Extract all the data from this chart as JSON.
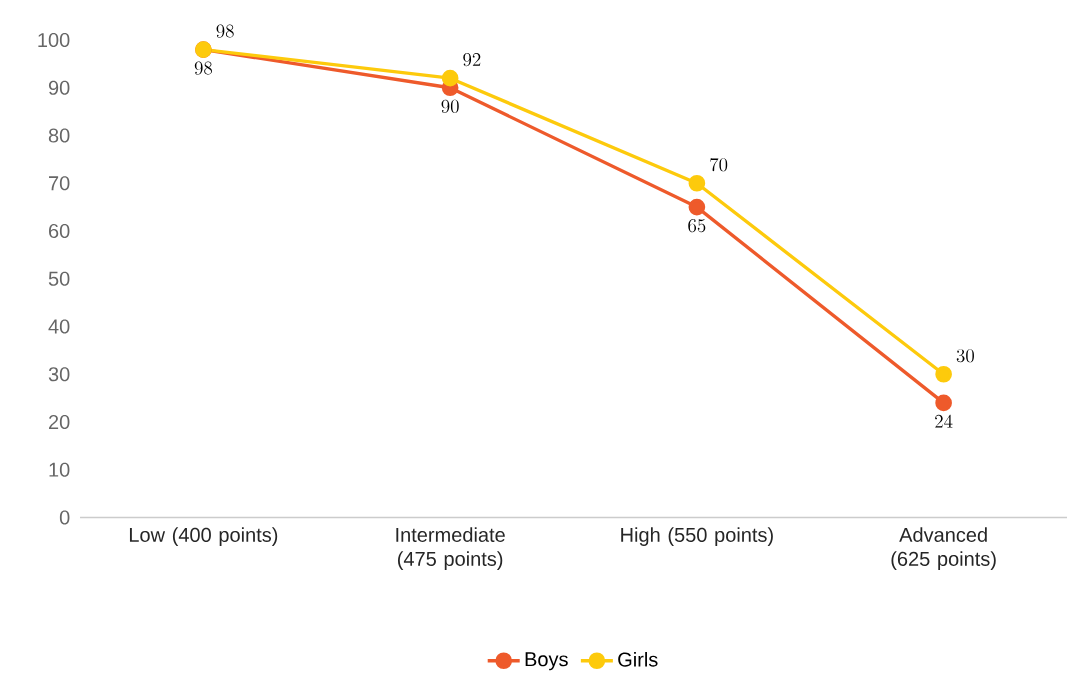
{
  "chart_data": {
    "type": "line",
    "categories": [
      "Low (400 points)",
      "Intermediate (475 points)",
      "High (550 points)",
      "Advanced (625 points)"
    ],
    "series": [
      {
        "name": "Boys",
        "color": "#ee5a2b",
        "values": [
          98,
          90,
          65,
          24
        ]
      },
      {
        "name": "Girls",
        "color": "#fdca0c",
        "values": [
          98,
          92,
          70,
          30
        ]
      }
    ],
    "ylim": [
      0,
      100
    ],
    "yticks": [
      0,
      10,
      20,
      30,
      40,
      50,
      60,
      70,
      80,
      90,
      100
    ],
    "data_labels": true,
    "legend": "bottom",
    "marker": "circle",
    "line_style": "solid"
  }
}
